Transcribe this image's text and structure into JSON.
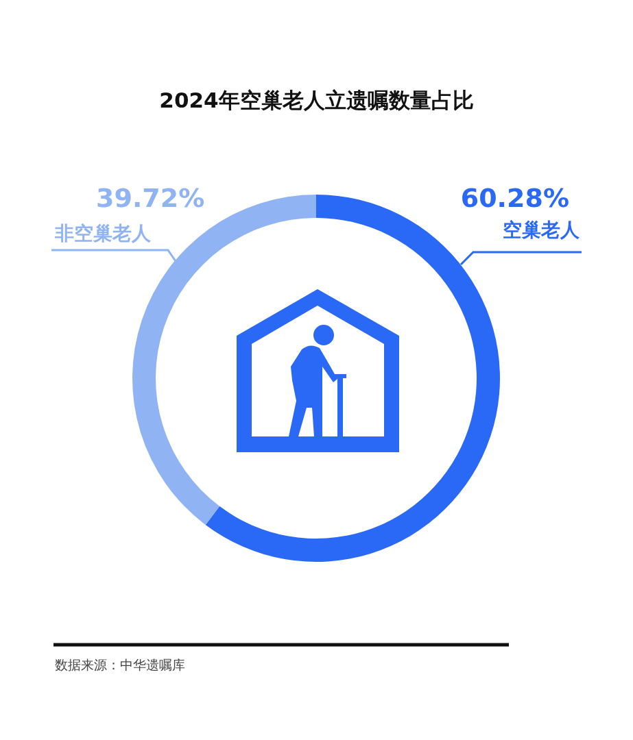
{
  "chart_data": {
    "type": "donut",
    "title": "2024年空巢老人立遗嘱数量占比",
    "categories": [
      "空巢老人",
      "非空巢老人"
    ],
    "values": [
      60.28,
      39.72
    ],
    "colors": [
      "#2a69f5",
      "#8fb3f3"
    ],
    "value_labels": [
      "60.28%",
      "39.72%"
    ],
    "annotations": [
      "数据来源：中华遗嘱库"
    ]
  }
}
